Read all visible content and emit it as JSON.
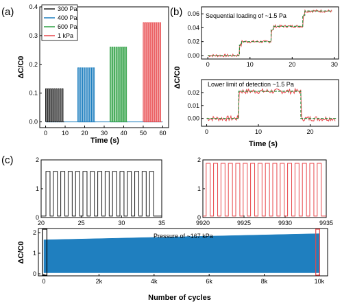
{
  "panel_labels": {
    "a": "(a)",
    "b": "(b)",
    "c": "(c)"
  },
  "colors": {
    "s300": "#1a1a1a",
    "s400": "#1f7fbf",
    "s600": "#2ea043",
    "s1k": "#e8464a",
    "fit": "#2e8b3a",
    "cycle_fill": "#1f7fbf",
    "box": "#e8464a"
  },
  "chart_data": [
    {
      "id": "a",
      "type": "line",
      "xlabel": "Time (s)",
      "ylabel": "ΔC/C0",
      "xlim": [
        -3,
        63
      ],
      "ylim": [
        -0.02,
        0.4
      ],
      "xticks": [
        0,
        10,
        20,
        30,
        40,
        50,
        60
      ],
      "yticks": [
        0.0,
        0.1,
        0.2,
        0.3,
        0.4
      ],
      "ytick_labels": [
        "0.0",
        "0.1",
        "0.2",
        "0.3",
        "0.4"
      ],
      "legend_position": "top-left",
      "series": [
        {
          "name": "300 Pa",
          "color_key": "s300",
          "start": 0,
          "end": 9.5,
          "peak": 0.115,
          "pulses": 9
        },
        {
          "name": "400 Pa",
          "color_key": "s400",
          "start": 16.5,
          "end": 25.5,
          "peak": 0.188,
          "pulses": 9
        },
        {
          "name": "600 Pa",
          "color_key": "s600",
          "start": 33,
          "end": 42,
          "peak": 0.26,
          "pulses": 9
        },
        {
          "name": "1 kPa",
          "color_key": "s1k",
          "start": 50,
          "end": 59.5,
          "peak": 0.345,
          "pulses": 9
        }
      ]
    },
    {
      "id": "b-top",
      "type": "line",
      "annotation": "Sequential loading of ~1.5 Pa",
      "xlim": [
        -1.5,
        31
      ],
      "ylim": [
        -0.005,
        0.07
      ],
      "xticks": [
        0,
        10,
        20,
        30
      ],
      "yticks": [
        0.0,
        0.02,
        0.04,
        0.06
      ],
      "ytick_labels": [
        "0.00",
        "0.02",
        "0.04",
        "0.06"
      ],
      "steps": [
        [
          0,
          0
        ],
        [
          7.5,
          0.015
        ],
        [
          8,
          0.02
        ],
        [
          15,
          0.037
        ],
        [
          15.5,
          0.042
        ],
        [
          22.5,
          0.058
        ],
        [
          23,
          0.064
        ],
        [
          29.5,
          0.064
        ]
      ]
    },
    {
      "id": "b-bottom",
      "type": "line",
      "annotation": "Lower limit of detection ~1.5 Pa",
      "xlabel": "Time (s)",
      "xlim": [
        -1,
        25.5
      ],
      "ylim": [
        -0.006,
        0.03
      ],
      "xticks": [
        0,
        10,
        20
      ],
      "yticks": [
        0.0,
        0.01,
        0.02
      ],
      "ytick_labels": [
        "0.00",
        "0.01",
        "0.02"
      ],
      "steps": [
        [
          0,
          0
        ],
        [
          6,
          0
        ],
        [
          6.2,
          0.021
        ],
        [
          18,
          0.021
        ],
        [
          18.2,
          0
        ],
        [
          25,
          0
        ]
      ]
    },
    {
      "id": "c-left",
      "type": "line",
      "xlim": [
        20,
        35
      ],
      "ylim": [
        0,
        2
      ],
      "xticks": [
        20,
        25,
        30,
        35
      ],
      "yticks": [
        0,
        1,
        2
      ],
      "cycle_start": 20.6,
      "cycle_period": 0.92,
      "cycles": 15,
      "high": 1.6,
      "low": 0.05
    },
    {
      "id": "c-right",
      "type": "line",
      "xlim": [
        9920,
        9935
      ],
      "ylim": [
        0,
        2
      ],
      "xticks": [
        9920,
        9925,
        9930,
        9935
      ],
      "yticks": [
        0,
        1,
        2
      ],
      "cycle_start": 9920.4,
      "cycle_period": 0.9,
      "cycles": 16,
      "high": 1.88,
      "low": 0.05
    },
    {
      "id": "c-bottom",
      "type": "area",
      "annotation": "Pressure of ~167 kPa",
      "xlabel": "Number of cycles",
      "ylabel": "ΔC/C0",
      "xlim": [
        -200,
        10300
      ],
      "ylim": [
        -0.1,
        2.2
      ],
      "xticks": [
        0,
        2000,
        4000,
        6000,
        8000,
        10000
      ],
      "xtick_labels": [
        "0",
        "2k",
        "4k",
        "6k",
        "8k",
        "10k"
      ],
      "yticks": [
        0,
        1,
        2
      ],
      "envelope_top": [
        [
          0,
          1.65
        ],
        [
          5000,
          1.8
        ],
        [
          10000,
          1.95
        ]
      ],
      "envelope_bottom": 0.05,
      "highlight_boxes": [
        [
          0,
          35
        ],
        [
          9920,
          9935
        ]
      ]
    }
  ]
}
